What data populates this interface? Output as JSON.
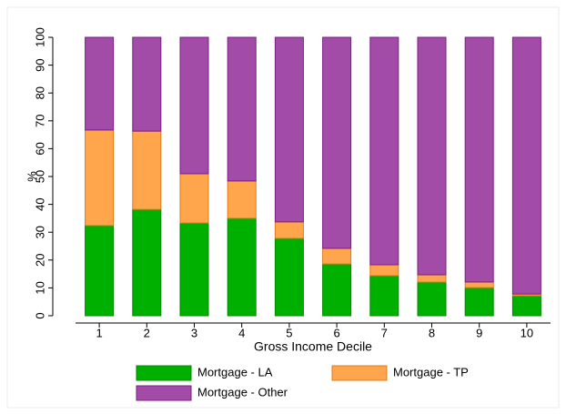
{
  "chart_data": {
    "type": "stacked_bar",
    "x_label": "Gross Income Decile",
    "y_label": "%",
    "categories": [
      "1",
      "2",
      "3",
      "4",
      "5",
      "6",
      "7",
      "8",
      "9",
      "10"
    ],
    "series": [
      {
        "name": "Mortgage - LA",
        "color": "#00b000",
        "edgecolor": "#008a00",
        "values": [
          32.4,
          38.2,
          33.3,
          35,
          27.8,
          18.6,
          14.4,
          12.1,
          10.1,
          7.2
        ]
      },
      {
        "name": "Mortgage - TP",
        "color": "#ffa64d",
        "edgecolor": "#e07b1a",
        "values": [
          34.3,
          28.1,
          17.7,
          13.4,
          5.9,
          5.6,
          3.9,
          2.6,
          2,
          0.6
        ]
      },
      {
        "name": "Mortgage - Other",
        "color": "#a24ca8",
        "edgecolor": "#7a1f86",
        "values": [
          33.3,
          33.7,
          49,
          51.6,
          66.3,
          75.8,
          81.7,
          85.3,
          87.9,
          92.2
        ]
      }
    ],
    "ylim": [
      0,
      100
    ],
    "yticks": [
      0,
      10,
      20,
      30,
      40,
      50,
      60,
      70,
      80,
      90,
      100
    ],
    "grid": false,
    "legend": "bottom"
  }
}
